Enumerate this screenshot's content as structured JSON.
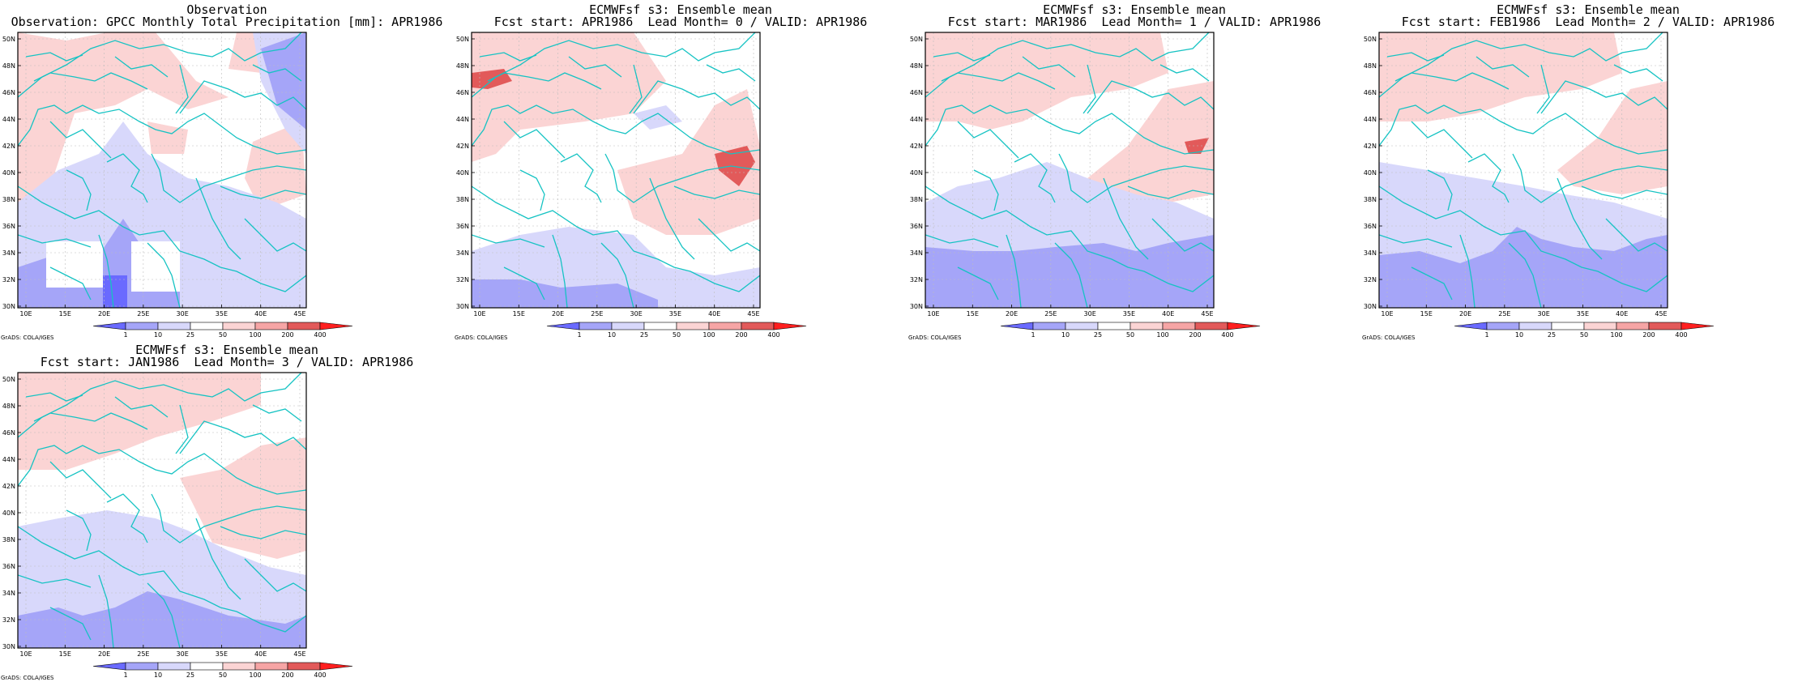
{
  "panels": [
    {
      "title1": "Observation",
      "title2": "Observation: GPCC Monthly Total Precipitation [mm]: APR1986",
      "credit": "GrADS: COLA/IGES",
      "fields": [
        {
          "c": "#e25a5a",
          "p": [
            [
              0,
              80
            ],
            [
              36,
              72
            ],
            [
              38,
              108
            ],
            [
              28,
              140
            ],
            [
              10,
              180
            ],
            [
              0,
              182
            ]
          ]
        },
        {
          "c": "#fbd4d4",
          "p": [
            [
              0,
              0
            ],
            [
              60,
              10
            ],
            [
              110,
              0
            ],
            [
              170,
              0
            ],
            [
              220,
              60
            ],
            [
              260,
              80
            ],
            [
              210,
              95
            ],
            [
              160,
              70
            ],
            [
              120,
              90
            ],
            [
              70,
              100
            ],
            [
              40,
              190
            ],
            [
              0,
              210
            ]
          ]
        },
        {
          "c": "#fbd4d4",
          "p": [
            [
              270,
              0
            ],
            [
              330,
              0
            ],
            [
              300,
              50
            ],
            [
              260,
              45
            ]
          ]
        },
        {
          "c": "#fbd4d4",
          "p": [
            [
              290,
              135
            ],
            [
              350,
              110
            ],
            [
              356,
              200
            ],
            [
              300,
              220
            ],
            [
              280,
              180
            ]
          ]
        },
        {
          "c": "#fbd4d4",
          "p": [
            [
              160,
              110
            ],
            [
              210,
              120
            ],
            [
              205,
              150
            ],
            [
              165,
              150
            ]
          ]
        },
        {
          "c": "#d8d8fb",
          "p": [
            [
              0,
              210
            ],
            [
              50,
              170
            ],
            [
              100,
              150
            ],
            [
              130,
              110
            ],
            [
              160,
              150
            ],
            [
              210,
              180
            ],
            [
              260,
              190
            ],
            [
              320,
              210
            ],
            [
              356,
              230
            ],
            [
              356,
              340
            ],
            [
              0,
              340
            ]
          ]
        },
        {
          "c": "#d8d8fb",
          "p": [
            [
              290,
              0
            ],
            [
              356,
              0
            ],
            [
              356,
              150
            ],
            [
              330,
              120
            ],
            [
              300,
              60
            ]
          ]
        },
        {
          "c": "#a5a5f8",
          "p": [
            [
              300,
              20
            ],
            [
              356,
              0
            ],
            [
              356,
              120
            ],
            [
              320,
              90
            ]
          ]
        },
        {
          "c": "#a5a5f8",
          "p": [
            [
              0,
              290
            ],
            [
              60,
              270
            ],
            [
              100,
              275
            ],
            [
              130,
              230
            ],
            [
              150,
              260
            ],
            [
              200,
              280
            ],
            [
              200,
              340
            ],
            [
              0,
              340
            ]
          ]
        },
        {
          "c": "#6a6aff",
          "p": [
            [
              105,
              300
            ],
            [
              135,
              300
            ],
            [
              135,
              340
            ],
            [
              105,
              340
            ]
          ]
        },
        {
          "c": "#ffffff",
          "p": [
            [
              35,
              258
            ],
            [
              105,
              258
            ],
            [
              105,
              315
            ],
            [
              35,
              315
            ]
          ]
        },
        {
          "c": "#ffffff",
          "p": [
            [
              140,
              258
            ],
            [
              200,
              258
            ],
            [
              200,
              320
            ],
            [
              140,
              320
            ]
          ]
        }
      ]
    },
    {
      "title1": "ECMWFsf s3: Ensemble mean",
      "title2": "Fcst start: APR1986  Lead Month= 0 / VALID: APR1986",
      "credit": "GrADS: COLA/IGES",
      "fields": [
        {
          "c": "#fbd4d4",
          "p": [
            [
              0,
              0
            ],
            [
              200,
              0
            ],
            [
              240,
              60
            ],
            [
              200,
              100
            ],
            [
              140,
              110
            ],
            [
              60,
              120
            ],
            [
              30,
              150
            ],
            [
              0,
              160
            ]
          ]
        },
        {
          "c": "#fbd4d4",
          "p": [
            [
              180,
              170
            ],
            [
              260,
              150
            ],
            [
              300,
              90
            ],
            [
              340,
              70
            ],
            [
              356,
              140
            ],
            [
              356,
              230
            ],
            [
              300,
              250
            ],
            [
              240,
              250
            ],
            [
              200,
              230
            ]
          ]
        },
        {
          "c": "#e25a5a",
          "p": [
            [
              0,
              50
            ],
            [
              40,
              45
            ],
            [
              50,
              60
            ],
            [
              20,
              70
            ],
            [
              0,
              68
            ]
          ]
        },
        {
          "c": "#e25a5a",
          "p": [
            [
              300,
              150
            ],
            [
              340,
              140
            ],
            [
              350,
              160
            ],
            [
              330,
              190
            ],
            [
              305,
              170
            ]
          ]
        },
        {
          "c": "#d8d8fb",
          "p": [
            [
              0,
              270
            ],
            [
              60,
              250
            ],
            [
              120,
              240
            ],
            [
              200,
              250
            ],
            [
              240,
              290
            ],
            [
              300,
              300
            ],
            [
              356,
              290
            ],
            [
              356,
              340
            ],
            [
              0,
              340
            ]
          ]
        },
        {
          "c": "#d8d8fb",
          "p": [
            [
              200,
              100
            ],
            [
              240,
              90
            ],
            [
              260,
              110
            ],
            [
              220,
              120
            ]
          ]
        },
        {
          "c": "#a5a5f8",
          "p": [
            [
              0,
              305
            ],
            [
              60,
              305
            ],
            [
              110,
              315
            ],
            [
              180,
              310
            ],
            [
              230,
              330
            ],
            [
              230,
              340
            ],
            [
              0,
              340
            ]
          ]
        }
      ]
    },
    {
      "title1": "ECMWFsf s3: Ensemble mean",
      "title2": "Fcst start: MAR1986  Lead Month= 1 / VALID: APR1986",
      "credit": "GrADS: COLA/IGES",
      "fields": [
        {
          "c": "#fbd4d4",
          "p": [
            [
              0,
              0
            ],
            [
              290,
              0
            ],
            [
              300,
              50
            ],
            [
              250,
              70
            ],
            [
              180,
              80
            ],
            [
              120,
              110
            ],
            [
              80,
              120
            ],
            [
              40,
              110
            ],
            [
              0,
              110
            ]
          ]
        },
        {
          "c": "#fbd4d4",
          "p": [
            [
              200,
              180
            ],
            [
              250,
              140
            ],
            [
              300,
              70
            ],
            [
              356,
              60
            ],
            [
              356,
              200
            ],
            [
              300,
              210
            ],
            [
              240,
              200
            ]
          ]
        },
        {
          "c": "#e25a5a",
          "p": [
            [
              320,
              135
            ],
            [
              350,
              130
            ],
            [
              340,
              150
            ],
            [
              325,
              150
            ]
          ]
        },
        {
          "c": "#d8d8fb",
          "p": [
            [
              0,
              210
            ],
            [
              40,
              190
            ],
            [
              90,
              180
            ],
            [
              150,
              160
            ],
            [
              200,
              180
            ],
            [
              260,
              200
            ],
            [
              310,
              210
            ],
            [
              356,
              230
            ],
            [
              356,
              340
            ],
            [
              0,
              340
            ]
          ]
        },
        {
          "c": "#a5a5f8",
          "p": [
            [
              0,
              265
            ],
            [
              60,
              270
            ],
            [
              110,
              270
            ],
            [
              160,
              265
            ],
            [
              220,
              260
            ],
            [
              260,
              270
            ],
            [
              300,
              260
            ],
            [
              356,
              250
            ],
            [
              356,
              340
            ],
            [
              0,
              340
            ]
          ]
        }
      ]
    },
    {
      "title1": "ECMWFsf s3: Ensemble mean",
      "title2": "Fcst start: FEB1986  Lead Month= 2 / VALID: APR1986",
      "credit": "GrADS: COLA/IGES",
      "fields": [
        {
          "c": "#fbd4d4",
          "p": [
            [
              0,
              0
            ],
            [
              290,
              0
            ],
            [
              300,
              50
            ],
            [
              250,
              70
            ],
            [
              180,
              80
            ],
            [
              120,
              100
            ],
            [
              60,
              110
            ],
            [
              0,
              110
            ]
          ]
        },
        {
          "c": "#fbd4d4",
          "p": [
            [
              220,
              170
            ],
            [
              270,
              130
            ],
            [
              310,
              70
            ],
            [
              356,
              60
            ],
            [
              356,
              190
            ],
            [
              300,
              200
            ],
            [
              240,
              190
            ]
          ]
        },
        {
          "c": "#d8d8fb",
          "p": [
            [
              0,
              160
            ],
            [
              60,
              170
            ],
            [
              120,
              180
            ],
            [
              180,
              190
            ],
            [
              230,
              200
            ],
            [
              290,
              210
            ],
            [
              356,
              230
            ],
            [
              356,
              340
            ],
            [
              0,
              340
            ]
          ]
        },
        {
          "c": "#a5a5f8",
          "p": [
            [
              0,
              275
            ],
            [
              50,
              270
            ],
            [
              100,
              285
            ],
            [
              140,
              270
            ],
            [
              170,
              240
            ],
            [
              200,
              255
            ],
            [
              240,
              265
            ],
            [
              290,
              270
            ],
            [
              330,
              255
            ],
            [
              356,
              250
            ],
            [
              356,
              340
            ],
            [
              0,
              340
            ]
          ]
        }
      ]
    },
    {
      "title1": "ECMWFsf s3: Ensemble mean",
      "title2": "Fcst start: JAN1986  Lead Month= 3 / VALID: APR1986",
      "credit": "GrADS: COLA/IGES",
      "fields": [
        {
          "c": "#fbd4d4",
          "p": [
            [
              0,
              0
            ],
            [
              300,
              0
            ],
            [
              300,
              40
            ],
            [
              240,
              60
            ],
            [
              170,
              80
            ],
            [
              120,
              100
            ],
            [
              60,
              120
            ],
            [
              0,
              120
            ]
          ]
        },
        {
          "c": "#fbd4d4",
          "p": [
            [
              200,
              130
            ],
            [
              250,
              120
            ],
            [
              300,
              90
            ],
            [
              356,
              80
            ],
            [
              356,
              220
            ],
            [
              320,
              230
            ],
            [
              240,
              210
            ]
          ]
        },
        {
          "c": "#d8d8fb",
          "p": [
            [
              0,
              190
            ],
            [
              50,
              180
            ],
            [
              110,
              170
            ],
            [
              170,
              180
            ],
            [
              210,
              195
            ],
            [
              260,
              220
            ],
            [
              310,
              240
            ],
            [
              356,
              250
            ],
            [
              356,
              340
            ],
            [
              0,
              340
            ]
          ]
        },
        {
          "c": "#a5a5f8",
          "p": [
            [
              0,
              300
            ],
            [
              50,
              290
            ],
            [
              80,
              300
            ],
            [
              120,
              290
            ],
            [
              160,
              270
            ],
            [
              200,
              280
            ],
            [
              260,
              300
            ],
            [
              330,
              310
            ],
            [
              356,
              300
            ],
            [
              356,
              340
            ],
            [
              0,
              340
            ]
          ]
        }
      ]
    }
  ],
  "map": {
    "lat_labels": [
      "50N",
      "48N",
      "46N",
      "44N",
      "42N",
      "40N",
      "38N",
      "36N",
      "34N",
      "32N",
      "30N"
    ],
    "lon_labels": [
      "10E",
      "15E",
      "20E",
      "25E",
      "30E",
      "35E",
      "40E",
      "45E"
    ],
    "coast_color": "#16c3c3",
    "grid_color": "#bdbdbd"
  },
  "colorbar": {
    "levels": [
      "1",
      "10",
      "25",
      "50",
      "100",
      "200",
      "400"
    ],
    "colors": [
      "#6a6aff",
      "#a5a5f8",
      "#d8d8fb",
      "#ffffff",
      "#fbd4d4",
      "#f6a5a5",
      "#e25a5a",
      "#ff1f1f"
    ]
  }
}
